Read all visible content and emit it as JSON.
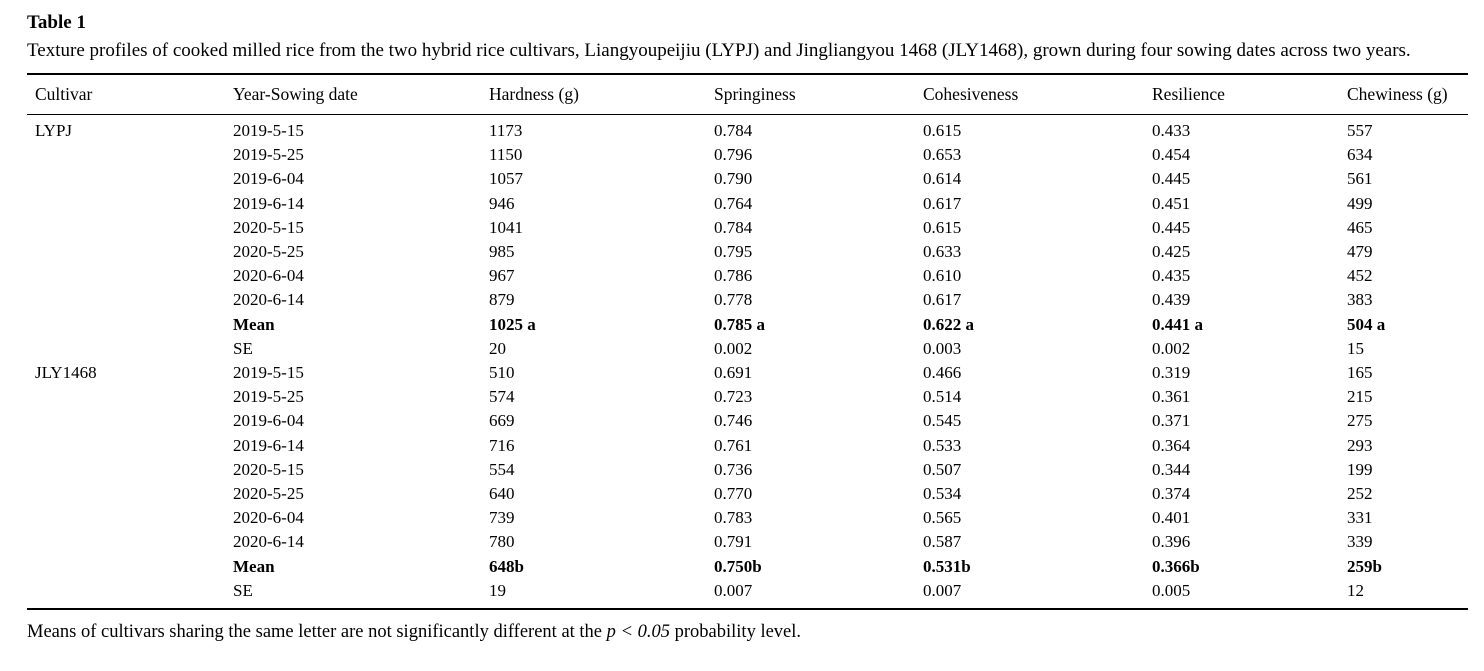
{
  "table": {
    "label": "Table 1",
    "caption": "Texture profiles of cooked milled rice from the two hybrid rice cultivars, Liangyoupeijiu (LYPJ) and Jingliangyou 1468 (JLY1468), grown during four sowing dates across two years.",
    "columns": [
      "Cultivar",
      "Year-Sowing date",
      "Hardness (g)",
      "Springiness",
      "Cohesiveness",
      "Resilience",
      "Chewiness (g)"
    ],
    "rows": [
      {
        "bold": false,
        "cells": [
          "LYPJ",
          "2019-5-15",
          "1173",
          "0.784",
          "0.615",
          "0.433",
          "557"
        ]
      },
      {
        "bold": false,
        "cells": [
          "",
          "2019-5-25",
          "1150",
          "0.796",
          "0.653",
          "0.454",
          "634"
        ]
      },
      {
        "bold": false,
        "cells": [
          "",
          "2019-6-04",
          "1057",
          "0.790",
          "0.614",
          "0.445",
          "561"
        ]
      },
      {
        "bold": false,
        "cells": [
          "",
          "2019-6-14",
          "946",
          "0.764",
          "0.617",
          "0.451",
          "499"
        ]
      },
      {
        "bold": false,
        "cells": [
          "",
          "2020-5-15",
          "1041",
          "0.784",
          "0.615",
          "0.445",
          "465"
        ]
      },
      {
        "bold": false,
        "cells": [
          "",
          "2020-5-25",
          "985",
          "0.795",
          "0.633",
          "0.425",
          "479"
        ]
      },
      {
        "bold": false,
        "cells": [
          "",
          "2020-6-04",
          "967",
          "0.786",
          "0.610",
          "0.435",
          "452"
        ]
      },
      {
        "bold": false,
        "cells": [
          "",
          "2020-6-14",
          "879",
          "0.778",
          "0.617",
          "0.439",
          "383"
        ]
      },
      {
        "bold": true,
        "cells": [
          "",
          "Mean",
          "1025 a",
          "0.785 a",
          "0.622 a",
          "0.441 a",
          "504 a"
        ]
      },
      {
        "bold": false,
        "cells": [
          "",
          "SE",
          "20",
          "0.002",
          "0.003",
          "0.002",
          "15"
        ]
      },
      {
        "bold": false,
        "cells": [
          "JLY1468",
          "2019-5-15",
          "510",
          "0.691",
          "0.466",
          "0.319",
          "165"
        ]
      },
      {
        "bold": false,
        "cells": [
          "",
          "2019-5-25",
          "574",
          "0.723",
          "0.514",
          "0.361",
          "215"
        ]
      },
      {
        "bold": false,
        "cells": [
          "",
          "2019-6-04",
          "669",
          "0.746",
          "0.545",
          "0.371",
          "275"
        ]
      },
      {
        "bold": false,
        "cells": [
          "",
          "2019-6-14",
          "716",
          "0.761",
          "0.533",
          "0.364",
          "293"
        ]
      },
      {
        "bold": false,
        "cells": [
          "",
          "2020-5-15",
          "554",
          "0.736",
          "0.507",
          "0.344",
          "199"
        ]
      },
      {
        "bold": false,
        "cells": [
          "",
          "2020-5-25",
          "640",
          "0.770",
          "0.534",
          "0.374",
          "252"
        ]
      },
      {
        "bold": false,
        "cells": [
          "",
          "2020-6-04",
          "739",
          "0.783",
          "0.565",
          "0.401",
          "331"
        ]
      },
      {
        "bold": false,
        "cells": [
          "",
          "2020-6-14",
          "780",
          "0.791",
          "0.587",
          "0.396",
          "339"
        ]
      },
      {
        "bold": true,
        "cells": [
          "",
          "Mean",
          "648b",
          "0.750b",
          "0.531b",
          "0.366b",
          "259b"
        ]
      },
      {
        "bold": false,
        "cells": [
          "",
          "SE",
          "19",
          "0.007",
          "0.007",
          "0.005",
          "12"
        ]
      }
    ],
    "footnote": {
      "prefix": "Means of cultivars sharing the same letter are not significantly different at the ",
      "italic": "p < 0.05",
      "suffix": " probability level."
    }
  }
}
